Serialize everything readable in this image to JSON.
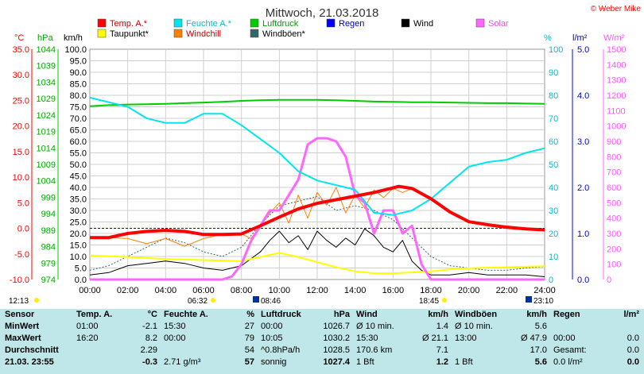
{
  "header": {
    "title": "Mittwoch, 21.03.2018",
    "copyright": "© Weber Mike"
  },
  "legend": [
    {
      "label": "Temp. A.*",
      "color": "#ff0000"
    },
    {
      "label": "Feuchte A.*",
      "color": "#00e5ee"
    },
    {
      "label": "Luftdruck",
      "color": "#00cc00"
    },
    {
      "label": "Regen",
      "color": "#0000ff"
    },
    {
      "label": "Wind",
      "color": "#000000"
    },
    {
      "label": "Solar",
      "color": "#ff66ff"
    },
    {
      "label": "Taupunkt*",
      "color": "#ffff00"
    },
    {
      "label": "Windchill",
      "color": "#ff8000"
    },
    {
      "label": "Windböen*",
      "color": "#336666"
    }
  ],
  "axis_units": {
    "temp": "°C",
    "pressure": "hPa",
    "wind": "km/h",
    "humidity": "%",
    "rain": "l/m²",
    "solar": "W/m²"
  },
  "axes": {
    "temp_ticks": [
      "35.0",
      "30.0",
      "25.0",
      "20.0",
      "15.0",
      "10.0",
      "5.0",
      "0.0",
      "-5.0",
      "-10.0"
    ],
    "pressure_ticks": [
      "1044",
      "1039",
      "1034",
      "1029",
      "1024",
      "1019",
      "1014",
      "1009",
      "1004",
      "999",
      "994",
      "989",
      "984",
      "979",
      "974"
    ],
    "wind_ticks": [
      "100.0",
      "95.0",
      "90.0",
      "85.0",
      "80.0",
      "75.0",
      "70.0",
      "65.0",
      "60.0",
      "55.0",
      "50.0",
      "45.0",
      "40.0",
      "35.0",
      "30.0",
      "25.0",
      "20.0",
      "15.0",
      "10.0",
      "5.0",
      "0.0"
    ],
    "humidity_ticks": [
      "100",
      "90",
      "80",
      "70",
      "60",
      "50",
      "40",
      "30",
      "20",
      "10",
      "0"
    ],
    "rain_ticks": [
      "5.0",
      "4.0",
      "3.0",
      "2.0",
      "1.0",
      "0.0"
    ],
    "solar_ticks": [
      "1500",
      "1400",
      "1300",
      "1200",
      "1100",
      "1000",
      "900",
      "800",
      "700",
      "600",
      "500",
      "400",
      "300",
      "200",
      "100",
      "0"
    ],
    "time_ticks": [
      "00:00",
      "02:00",
      "04:00",
      "06:00",
      "08:00",
      "10:00",
      "12:00",
      "14:00",
      "16:00",
      "18:00",
      "20:00",
      "22:00",
      "24:00"
    ]
  },
  "sun": {
    "moon_rise": "12:13",
    "sunrise": "06:32",
    "moon_set": "08:46",
    "sunset": "18:45",
    "moon_set2": "23:10"
  },
  "colors": {
    "temp": "#ff0000",
    "humidity": "#00e5ee",
    "pressure": "#00cc00",
    "wind": "#000000",
    "solar": "#ff66ff",
    "dew": "#ffff00",
    "windchill": "#ff8000",
    "gust": "#336666",
    "rain": "#0000ff",
    "table_bg": "#bfe6e9"
  },
  "chart_data": {
    "type": "line",
    "x_range_hours": [
      0,
      24
    ],
    "series": [
      {
        "name": "Temp. A.*",
        "axis": "temp",
        "ylim": [
          -10,
          35
        ],
        "x": [
          0,
          1,
          2,
          3,
          4,
          5,
          6,
          7,
          8,
          9,
          10,
          11,
          12,
          13,
          14,
          15,
          16,
          16.3,
          17,
          18,
          19,
          20,
          21,
          22,
          23,
          24
        ],
        "y": [
          -1.8,
          -1.8,
          -1.0,
          -0.6,
          -0.4,
          -0.6,
          -1.2,
          -1.2,
          -1.1,
          0.5,
          2.2,
          3.8,
          4.9,
          5.6,
          6.3,
          7.0,
          7.9,
          8.2,
          7.8,
          5.8,
          3.2,
          1.3,
          0.7,
          0.2,
          -0.1,
          -0.3
        ]
      },
      {
        "name": "Feuchte A.*",
        "axis": "humidity",
        "ylim": [
          0,
          100
        ],
        "x": [
          0,
          1,
          2,
          3,
          4,
          5,
          6,
          7,
          8,
          9,
          10,
          11,
          12,
          13,
          14,
          15,
          16,
          17,
          18,
          19,
          20,
          21,
          22,
          23,
          24
        ],
        "y": [
          79,
          77,
          75,
          70,
          68,
          68,
          72,
          72,
          67,
          61,
          55,
          47,
          43,
          41,
          39,
          29,
          28,
          30,
          35,
          42,
          49,
          51,
          52,
          55,
          57
        ]
      },
      {
        "name": "Luftdruck",
        "axis": "pressure",
        "ylim": [
          974,
          1044
        ],
        "x": [
          0,
          1,
          2,
          3,
          4,
          5,
          6,
          7,
          8,
          9,
          10,
          11,
          12,
          13,
          14,
          15,
          16,
          17,
          18,
          19,
          20,
          21,
          22,
          23,
          24
        ],
        "y": [
          1026.7,
          1027.0,
          1027.2,
          1027.3,
          1027.4,
          1027.6,
          1027.8,
          1028.0,
          1028.3,
          1028.5,
          1028.6,
          1028.6,
          1028.6,
          1028.5,
          1028.3,
          1028.1,
          1028.0,
          1027.9,
          1027.9,
          1027.8,
          1027.7,
          1027.6,
          1027.6,
          1027.5,
          1027.4
        ]
      },
      {
        "name": "Taupunkt*",
        "axis": "temp",
        "ylim": [
          -10,
          35
        ],
        "x": [
          0,
          2,
          4,
          6,
          8,
          9,
          10,
          11,
          12,
          13,
          14,
          15,
          16,
          17,
          18,
          19,
          20,
          22,
          24
        ],
        "y": [
          -5.3,
          -5.6,
          -6.0,
          -6.2,
          -6.4,
          -5.6,
          -4.8,
          -5.6,
          -6.6,
          -7.6,
          -8.4,
          -8.8,
          -8.8,
          -8.6,
          -8.4,
          -8.0,
          -7.8,
          -7.6,
          -7.4
        ]
      },
      {
        "name": "Wind",
        "axis": "wind",
        "ylim": [
          0,
          100
        ],
        "x": [
          0,
          1,
          2,
          3,
          4,
          5,
          6,
          7,
          8,
          8.5,
          9,
          9.5,
          10,
          10.5,
          11,
          11.5,
          12,
          12.5,
          13,
          13.5,
          14,
          14.5,
          15,
          15.5,
          16,
          16.5,
          17,
          17.5,
          18,
          19,
          20,
          21,
          22,
          23,
          24
        ],
        "y": [
          2,
          3,
          6,
          7,
          8,
          7,
          5,
          4,
          6,
          9,
          12,
          17,
          21,
          16,
          19,
          13,
          21,
          17,
          14,
          18,
          15,
          22,
          19,
          14,
          12,
          17,
          8,
          4,
          2,
          2,
          3,
          2,
          2,
          2,
          1.2
        ]
      },
      {
        "name": "Windböen*",
        "axis": "wind",
        "ylim": [
          0,
          100
        ],
        "x": [
          0,
          1,
          2,
          3,
          4,
          5,
          6,
          7,
          8,
          9,
          10,
          11,
          12,
          13,
          14,
          15,
          16,
          17,
          18,
          19,
          20,
          21,
          22,
          23,
          24
        ],
        "y": [
          4,
          6,
          10,
          14,
          18,
          16,
          12,
          10,
          14,
          24,
          32,
          34,
          36,
          30,
          32,
          30,
          26,
          18,
          10,
          6,
          5,
          4,
          4,
          5,
          5.6
        ]
      },
      {
        "name": "Windchill",
        "axis": "temp",
        "ylim": [
          -10,
          35
        ],
        "x": [
          0,
          1,
          2,
          3,
          4,
          5,
          6,
          7,
          8,
          8.5,
          9,
          9.5,
          10,
          10.5,
          11,
          11.5,
          12,
          12.5,
          13,
          13.5,
          14,
          14.5,
          15,
          15.5,
          16,
          16.5,
          17,
          18,
          19,
          20,
          24
        ],
        "y": [
          -1.8,
          -1.8,
          -2.0,
          -3.0,
          -2.0,
          -3.5,
          -2.0,
          -1.2,
          -1.1,
          -2.0,
          0.5,
          3.0,
          5.0,
          1.0,
          6.5,
          2.0,
          7.0,
          4.5,
          8.0,
          3.0,
          6.5,
          4.0,
          7.5,
          6.0,
          7.8,
          7.0,
          7.8,
          5.8,
          3.2,
          1.3,
          -0.3
        ]
      },
      {
        "name": "Solar",
        "axis": "solar",
        "ylim": [
          0,
          1500
        ],
        "x": [
          0,
          6.5,
          7,
          7.5,
          8,
          8.5,
          9,
          9.5,
          10,
          10.5,
          11,
          11.5,
          12,
          12.5,
          13,
          13.5,
          14,
          14.5,
          15,
          15.5,
          16,
          16.5,
          17,
          17.5,
          18,
          24
        ],
        "y": [
          0,
          0,
          0,
          20,
          100,
          250,
          350,
          450,
          450,
          550,
          650,
          880,
          920,
          920,
          900,
          800,
          550,
          500,
          300,
          450,
          450,
          300,
          350,
          100,
          0,
          0
        ]
      }
    ]
  },
  "table": {
    "headers": [
      "Sensor",
      "Temp. A.",
      "°C",
      "Feuchte A.",
      "%",
      "Luftdruck",
      "hPa",
      "Wind",
      "km/h",
      "Windböen",
      "km/h",
      "Regen",
      "l/m²"
    ],
    "rows": [
      {
        "label": "MinWert",
        "cells": [
          "01:00",
          "-2.1",
          "15:30",
          "27",
          "00:00",
          "1026.7",
          "Ø 10 min.",
          "1.4",
          "Ø 10 min.",
          "5.6",
          "",
          ""
        ]
      },
      {
        "label": "MaxWert",
        "cells": [
          "16:20",
          "8.2",
          "00:00",
          "79",
          "10:05",
          "1030.2",
          "15:30",
          "Ø 21.1",
          "13:00",
          "Ø 47.9",
          "00:00",
          "0.0"
        ]
      },
      {
        "label": "Durchschnitt",
        "cells": [
          "",
          "2.29",
          "",
          "54",
          "^0.8hPa/h",
          "1028.5",
          "170.6 km",
          "7.1",
          "",
          "17.0",
          "Gesamt:",
          "0.0"
        ]
      },
      {
        "label": "21.03. 23:55",
        "cells": [
          "",
          "-0.3",
          "2.71 g/m³",
          "57",
          "sonnig",
          "1027.4",
          "1 Bft",
          "1.2",
          "1 Bft",
          "5.6",
          "0.0 l/m²",
          "0.0"
        ]
      }
    ]
  }
}
